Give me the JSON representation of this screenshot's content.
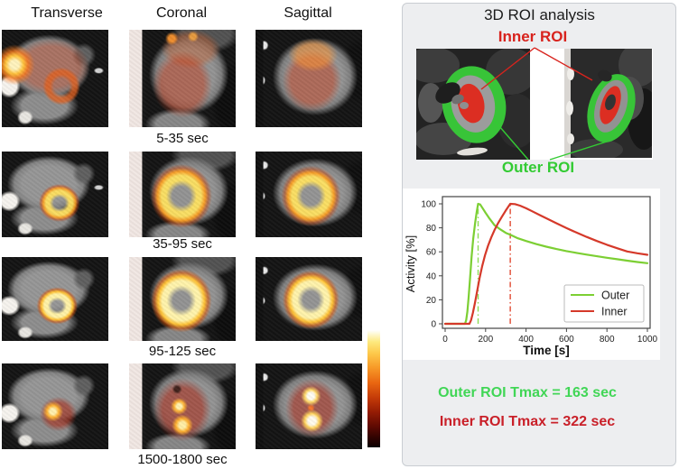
{
  "figure": {
    "view_columns": [
      "Transverse",
      "Coronal",
      "Sagittal"
    ],
    "time_phase_labels": [
      "5-35 sec",
      "35-95 sec",
      "95-125 sec",
      "1500-1800 sec"
    ],
    "colorbar": "pet-hot-intensity-scale"
  },
  "roi_panel": {
    "title": "3D ROI analysis",
    "inner_roi_label": "Inner ROI",
    "outer_roi_label": "Outer ROI",
    "outer_tmax_text": "Outer ROI Tmax = 163 sec",
    "inner_tmax_text": "Inner ROI Tmax = 322 sec",
    "colors": {
      "inner_red": "#d8231d",
      "outer_green": "#33cb33",
      "tmax_green": "#41d656",
      "tmax_red": "#c92029",
      "panel_bg": "#edeef0"
    }
  },
  "chart_data": {
    "type": "line",
    "title": "",
    "xlabel": "Time [s]",
    "ylabel": "Activity [%]",
    "xlim": [
      0,
      1000
    ],
    "ylim": [
      0,
      100
    ],
    "xticks": [
      0,
      200,
      400,
      600,
      800,
      1000
    ],
    "yticks": [
      0,
      20,
      40,
      60,
      80,
      100
    ],
    "grid": false,
    "legend": {
      "position": "lower right",
      "entries": [
        "Outer",
        "Inner"
      ]
    },
    "series": [
      {
        "name": "Outer",
        "color": "#7ccf33",
        "x": [
          0,
          98,
          104,
          110,
          116,
          123,
          131,
          139,
          148,
          156,
          163,
          173,
          185,
          200,
          220,
          245,
          270,
          300,
          322,
          360,
          400,
          450,
          500,
          550,
          600,
          650,
          700,
          750,
          800,
          850,
          900,
          950,
          1000
        ],
        "y": [
          0,
          0,
          3,
          10,
          22,
          38,
          56,
          71,
          84,
          93,
          100,
          99.5,
          96.5,
          92.5,
          87.5,
          82,
          79,
          75.8,
          74.2,
          71.3,
          69,
          66.5,
          64.3,
          62.3,
          60.6,
          59.1,
          57.7,
          56.3,
          55,
          53.8,
          52.6,
          51.5,
          50.5
        ]
      },
      {
        "name": "Inner",
        "color": "#d5392a",
        "x": [
          0,
          120,
          128,
          137,
          147,
          158,
          170,
          183,
          197,
          212,
          228,
          245,
          262,
          280,
          300,
          322,
          345,
          370,
          400,
          430,
          469,
          500,
          550,
          600,
          650,
          700,
          750,
          800,
          850,
          900,
          950,
          1000
        ],
        "y": [
          0,
          0,
          3,
          9,
          17,
          27,
          38,
          48,
          57,
          65,
          72,
          78.5,
          84,
          89,
          94.5,
          100,
          99.8,
          98.5,
          96.3,
          93.8,
          90.5,
          88,
          83.8,
          79.8,
          76,
          72.4,
          69,
          65.9,
          63,
          60.3,
          58.8,
          57.5
        ]
      }
    ],
    "vlines": [
      {
        "name": "outer-tmax",
        "x": 163,
        "top": 100,
        "color": "#8edd55",
        "style": "dashdot"
      },
      {
        "name": "inner-tmax",
        "x": 322,
        "top": 100,
        "color": "#e14a32",
        "style": "dashdot"
      }
    ]
  }
}
